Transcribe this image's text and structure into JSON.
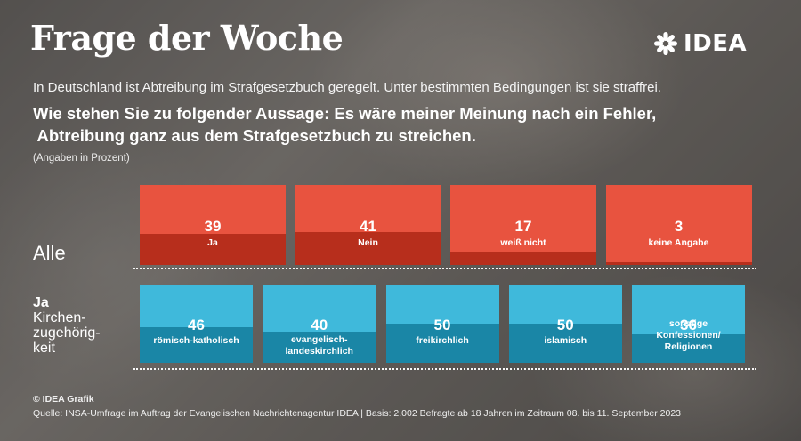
{
  "header": {
    "title": "Frage der Woche",
    "logo_text": "IDEA",
    "intro": "In Deutschland ist Abtreibung im Strafgesetzbuch geregelt. Unter bestimmten Bedingungen ist sie straffrei.",
    "question_line1": "Wie stehen Sie zu folgender Aussage: Es wäre meiner Meinung nach ein Fehler,",
    "question_line2": " Abtreibung ganz aus dem Strafgesetzbuch zu streichen.",
    "unit_note": "(Angaben in Prozent)"
  },
  "chart_data": [
    {
      "type": "bar",
      "row_label": "Alle",
      "categories": [
        "Ja",
        "Nein",
        "weiß nicht",
        "keine Angabe"
      ],
      "values": [
        39,
        41,
        17,
        3
      ],
      "colors": {
        "tile": "#e8533f",
        "fill": "#b72e1c"
      }
    },
    {
      "type": "bar",
      "row_label_bold": "Ja",
      "row_label_lines": [
        "Kirchen-",
        "zugehörig-",
        "keit"
      ],
      "categories": [
        "römisch-katholisch",
        "evangelisch-landeskirchlich",
        "freikirchlich",
        "islamisch",
        "sonstige Konfessionen/ Religionen"
      ],
      "category_lines": [
        [
          "römisch-katholisch"
        ],
        [
          "evangelisch-",
          "landeskirchlich"
        ],
        [
          "freikirchlich"
        ],
        [
          "islamisch"
        ],
        [
          "sonstige",
          "Konfessionen/",
          "Religionen"
        ]
      ],
      "values": [
        46,
        40,
        50,
        50,
        36
      ],
      "colors": {
        "tile": "#3fb9db",
        "fill": "#1a86a6"
      }
    }
  ],
  "footer": {
    "credit": "© IDEA Grafik",
    "source": "Quelle: INSA-Umfrage im Auftrag der Evangelischen Nachrichtenagentur IDEA | Basis: 2.002 Befragte ab 18 Jahren im Zeitraum 08. bis 11. September 2023"
  }
}
